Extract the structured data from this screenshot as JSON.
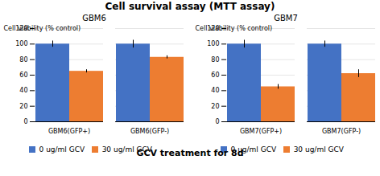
{
  "title": "Cell survival assay (MTT assay)",
  "xlabel": "GCV treatment for 8d",
  "chart_data": [
    {
      "type": "bar",
      "title": "GBM6",
      "categories": [
        "GBM6(GFP+)",
        "GBM6(GFP-)"
      ],
      "ylabel": "Cell viability (% control)",
      "series": [
        {
          "name": "0 ug/ml GCV",
          "color": "#4472C4",
          "values": [
            100,
            100
          ],
          "errors": [
            4,
            5
          ]
        },
        {
          "name": "30 ug/ml GCV",
          "color": "#ED7D31",
          "values": [
            65,
            83
          ],
          "errors": [
            2,
            2
          ]
        }
      ],
      "ylim": [
        0,
        120
      ],
      "yticks": [
        0,
        20,
        40,
        60,
        80,
        100,
        120
      ],
      "grid": true,
      "legend": "bottom"
    },
    {
      "type": "bar",
      "title": "GBM7",
      "categories": [
        "GBM7(GFP+)",
        "GBM7(GFP-)"
      ],
      "ylabel": "Cell viability (% control)",
      "series": [
        {
          "name": "0 ug/ml GCV",
          "color": "#4472C4",
          "values": [
            100,
            100
          ],
          "errors": [
            5,
            4
          ]
        },
        {
          "name": "30 ug/ml GCV",
          "color": "#ED7D31",
          "values": [
            45,
            62
          ],
          "errors": [
            3,
            5
          ]
        }
      ],
      "ylim": [
        0,
        120
      ],
      "yticks": [
        0,
        20,
        40,
        60,
        80,
        100,
        120
      ],
      "grid": true,
      "legend": "bottom"
    }
  ]
}
